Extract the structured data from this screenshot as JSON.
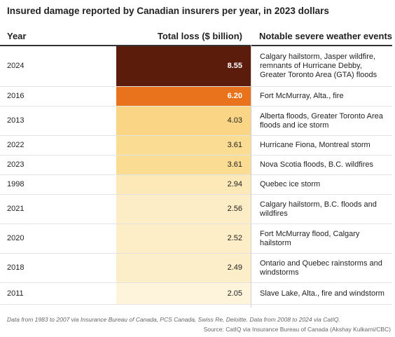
{
  "title": "Insured damage reported by Canadian insurers per year, in 2023 dollars",
  "headers": {
    "year": "Year",
    "loss": "Total loss ($ billion)",
    "events": "Notable severe weather events"
  },
  "colors": {
    "darkest": "#5c1c0c",
    "orange": "#e8731c",
    "text_light": "#ffffff",
    "text_dark": "#222222"
  },
  "chart_data": {
    "type": "table",
    "title": "Insured damage reported by Canadian insurers per year, in 2023 dollars",
    "columns": [
      "Year",
      "Total loss ($ billion)",
      "Notable severe weather events"
    ],
    "rows": [
      {
        "year": "2024",
        "loss": 8.55,
        "loss_label": "8.55",
        "events": "Calgary hailstorm, Jasper wildfire, remnants of Hurricane Debby, Greater Toronto Area (GTA) floods",
        "color": "#5c1c0c",
        "text_color": "#ffffff"
      },
      {
        "year": "2016",
        "loss": 6.2,
        "loss_label": "6.20",
        "events": "Fort McMurray, Alta., fire",
        "color": "#e8731c",
        "text_color": "#ffffff"
      },
      {
        "year": "2013",
        "loss": 4.03,
        "loss_label": "4.03",
        "events": "Alberta floods, Greater Toronto Area floods and ice storm",
        "color": "#fad585",
        "text_color": "#222222"
      },
      {
        "year": "2022",
        "loss": 3.61,
        "loss_label": "3.61",
        "events": "Hurricane Fiona, Montreal storm",
        "color": "#fbdc93",
        "text_color": "#222222"
      },
      {
        "year": "2023",
        "loss": 3.61,
        "loss_label": "3.61",
        "events": "Nova Scotia floods, B.C. wildfires",
        "color": "#fbdc93",
        "text_color": "#222222"
      },
      {
        "year": "1998",
        "loss": 2.94,
        "loss_label": "2.94",
        "events": "Quebec ice storm",
        "color": "#fde9b8",
        "text_color": "#222222"
      },
      {
        "year": "2021",
        "loss": 2.56,
        "loss_label": "2.56",
        "events": "Calgary hailstorm, B.C. floods and wildfires",
        "color": "#fdedc6",
        "text_color": "#222222"
      },
      {
        "year": "2020",
        "loss": 2.52,
        "loss_label": "2.52",
        "events": "Fort McMurray flood, Calgary hailstorm",
        "color": "#fdeec8",
        "text_color": "#222222"
      },
      {
        "year": "2018",
        "loss": 2.49,
        "loss_label": "2.49",
        "events": "Ontario and Quebec rainstorms and windstorms",
        "color": "#fdeeca",
        "text_color": "#222222"
      },
      {
        "year": "2011",
        "loss": 2.05,
        "loss_label": "2.05",
        "events": "Slave Lake, Alta., fire and windstorm",
        "color": "#fef4dc",
        "text_color": "#222222"
      }
    ]
  },
  "footer": {
    "note": "Data from 1983 to 2007 via Insurance Bureau of Canada, PCS Canada, Swiss Re, Deloitte. Data from 2008 to 2024 via CatIQ.",
    "source": "Source: CatIQ via Insurance Bureau of Canada (Akshay Kulkarni/CBC)"
  }
}
